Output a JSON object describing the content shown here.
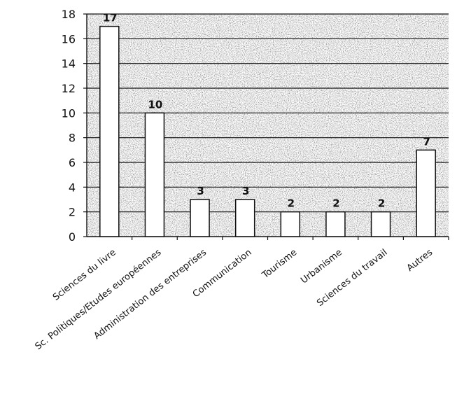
{
  "chart_data": {
    "type": "bar",
    "categories": [
      "Sciences du livre",
      "Sc. Politiques/Etudes européennes",
      "Administration des entreprises",
      "Communication",
      "Tourisme",
      "Urbanisme",
      "Sciences du travail",
      "Autres"
    ],
    "values": [
      17,
      10,
      3,
      3,
      2,
      2,
      2,
      7
    ],
    "data_labels": [
      "17",
      "10",
      "3",
      "3",
      "2",
      "2",
      "2",
      "7"
    ],
    "ylim": [
      0,
      18
    ],
    "yticks": [
      0,
      2,
      4,
      6,
      8,
      10,
      12,
      14,
      16,
      18
    ],
    "grid": true,
    "legend": "none",
    "bar_fill": "#ffffff",
    "bar_stroke": "#111111",
    "grid_color": "#111111",
    "plot_background": "#d8d8d8"
  }
}
